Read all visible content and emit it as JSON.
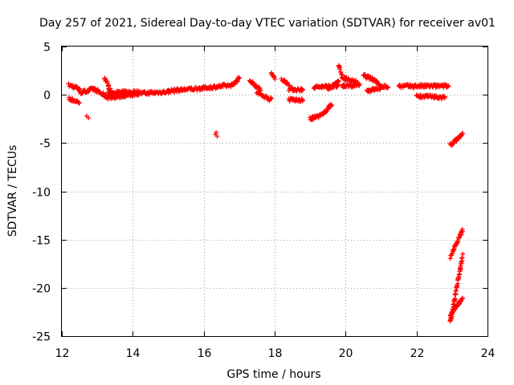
{
  "chart_data": {
    "type": "scatter",
    "title": "Day 257 of 2021, Sidereal Day-to-day VTEC variation (SDTVAR) for receiver av01",
    "xlabel": "GPS time / hours",
    "ylabel": "SDTVAR / TECUs",
    "xlim": [
      12,
      24
    ],
    "ylim": [
      -25,
      5
    ],
    "xticks": [
      12,
      14,
      16,
      18,
      20,
      22,
      24
    ],
    "yticks": [
      5,
      0,
      -5,
      -10,
      -15,
      -20,
      -25
    ],
    "xtick_labels": [
      "12",
      "14",
      "16",
      "18",
      "20",
      "22",
      "24"
    ],
    "ytick_labels": [
      "5",
      "0",
      "-5",
      "-10",
      "-15",
      "-20",
      "-25"
    ],
    "grid": true,
    "point_style": "plus",
    "series": [
      {
        "name": "SDTVAR",
        "color": "#ff0000",
        "segments": [
          {
            "x_start": 12.2,
            "x_end": 12.5,
            "y_start": 1.0,
            "y_end": 0.6
          },
          {
            "x_start": 12.2,
            "x_end": 12.5,
            "y_start": -0.4,
            "y_end": -0.8
          },
          {
            "x_start": 12.5,
            "x_end": 12.9,
            "y_start": 0.2,
            "y_end": 0.6
          },
          {
            "x_start": 12.9,
            "x_end": 13.3,
            "y_start": 0.6,
            "y_end": -0.3
          },
          {
            "x_start": 13.2,
            "x_end": 13.4,
            "y_start": 1.8,
            "y_end": 0.2
          },
          {
            "x_start": 13.3,
            "x_end": 14.2,
            "y_start": 0.2,
            "y_end": 0.3
          },
          {
            "x_start": 13.3,
            "x_end": 14.0,
            "y_start": -0.3,
            "y_end": 0.0
          },
          {
            "x_start": 14.0,
            "x_end": 15.0,
            "y_start": 0.1,
            "y_end": 0.3
          },
          {
            "x_start": 15.0,
            "x_end": 16.0,
            "y_start": 0.4,
            "y_end": 0.7
          },
          {
            "x_start": 16.0,
            "x_end": 16.8,
            "y_start": 0.7,
            "y_end": 1.0
          },
          {
            "x_start": 16.8,
            "x_end": 17.0,
            "y_start": 1.0,
            "y_end": 1.7
          },
          {
            "x_start": 17.3,
            "x_end": 17.6,
            "y_start": 1.5,
            "y_end": 0.5
          },
          {
            "x_start": 17.5,
            "x_end": 17.9,
            "y_start": 0.2,
            "y_end": -0.5
          },
          {
            "x_start": 17.9,
            "x_end": 18.0,
            "y_start": 2.2,
            "y_end": 1.8
          },
          {
            "x_start": 18.2,
            "x_end": 18.4,
            "y_start": 1.6,
            "y_end": 1.1
          },
          {
            "x_start": 18.4,
            "x_end": 18.8,
            "y_start": 0.6,
            "y_end": 0.5
          },
          {
            "x_start": 18.4,
            "x_end": 18.8,
            "y_start": -0.5,
            "y_end": -0.6
          },
          {
            "x_start": 19.0,
            "x_end": 19.4,
            "y_start": -2.5,
            "y_end": -2.0
          },
          {
            "x_start": 19.4,
            "x_end": 19.6,
            "y_start": -1.8,
            "y_end": -1.0
          },
          {
            "x_start": 19.1,
            "x_end": 19.8,
            "y_start": 0.8,
            "y_end": 0.9
          },
          {
            "x_start": 19.5,
            "x_end": 19.8,
            "y_start": 0.5,
            "y_end": 1.5
          },
          {
            "x_start": 19.8,
            "x_end": 19.9,
            "y_start": 3.0,
            "y_end": 2.0
          },
          {
            "x_start": 19.9,
            "x_end": 20.4,
            "y_start": 0.9,
            "y_end": 1.0
          },
          {
            "x_start": 19.9,
            "x_end": 20.3,
            "y_start": 1.8,
            "y_end": 1.3
          },
          {
            "x_start": 20.5,
            "x_end": 20.9,
            "y_start": 2.0,
            "y_end": 1.4
          },
          {
            "x_start": 20.6,
            "x_end": 21.0,
            "y_start": 0.4,
            "y_end": 0.7
          },
          {
            "x_start": 20.9,
            "x_end": 21.2,
            "y_start": 1.0,
            "y_end": 0.8
          },
          {
            "x_start": 21.5,
            "x_end": 22.9,
            "y_start": 0.9,
            "y_end": 0.9
          },
          {
            "x_start": 22.0,
            "x_end": 22.8,
            "y_start": -0.1,
            "y_end": -0.3
          },
          {
            "x_start": 22.95,
            "x_end": 23.3,
            "y_start": -5.2,
            "y_end": -4.1
          },
          {
            "x_start": 22.95,
            "x_end": 23.3,
            "y_start": -16.8,
            "y_end": -14.0
          },
          {
            "x_start": 22.95,
            "x_end": 23.3,
            "y_start": -23.6,
            "y_end": -16.6
          },
          {
            "x_start": 22.95,
            "x_end": 23.3,
            "y_start": -22.8,
            "y_end": -21.0
          }
        ],
        "points": [
          [
            12.7,
            -2.2
          ],
          [
            12.75,
            -2.4
          ],
          [
            16.35,
            -3.9
          ],
          [
            16.38,
            -4.3
          ],
          [
            16.33,
            -4.1
          ]
        ]
      }
    ]
  }
}
